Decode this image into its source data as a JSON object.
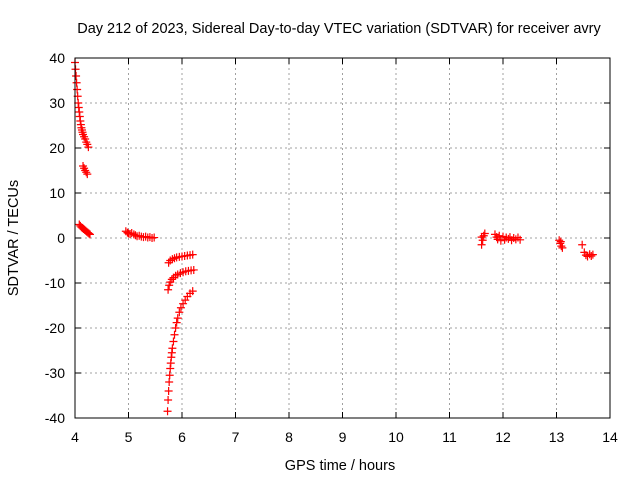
{
  "chart_data": {
    "type": "scatter",
    "title": "Day 212 of 2023, Sidereal Day-to-day VTEC variation (SDTVAR) for receiver avry",
    "xlabel": "GPS time / hours",
    "ylabel": "SDTVAR / TECUs",
    "xlim": [
      4,
      14
    ],
    "ylim": [
      -40,
      40
    ],
    "xticks": [
      "4",
      "5",
      "6",
      "7",
      "8",
      "9",
      "10",
      "11",
      "12",
      "13",
      "14"
    ],
    "yticks": [
      "40",
      "30",
      "20",
      "10",
      "0",
      "-10",
      "-20",
      "-30",
      "-40"
    ],
    "grid": true,
    "marker": "+",
    "marker_color": "#ff0000",
    "series": [
      {
        "name": "SDTVAR",
        "points": [
          [
            4.0,
            39.0
          ],
          [
            4.01,
            37.5
          ],
          [
            4.02,
            36.0
          ],
          [
            4.03,
            34.5
          ],
          [
            4.04,
            33.0
          ],
          [
            4.05,
            31.5
          ],
          [
            4.06,
            30.0
          ],
          [
            4.07,
            29.0
          ],
          [
            4.08,
            28.0
          ],
          [
            4.09,
            27.0
          ],
          [
            4.1,
            26.0
          ],
          [
            4.11,
            25.2
          ],
          [
            4.12,
            24.5
          ],
          [
            4.13,
            24.0
          ],
          [
            4.14,
            23.5
          ],
          [
            4.15,
            23.0
          ],
          [
            4.17,
            22.5
          ],
          [
            4.19,
            22.0
          ],
          [
            4.21,
            21.3
          ],
          [
            4.23,
            20.8
          ],
          [
            4.25,
            20.2
          ],
          [
            4.15,
            16.0
          ],
          [
            4.17,
            15.5
          ],
          [
            4.19,
            15.0
          ],
          [
            4.21,
            14.6
          ],
          [
            4.23,
            14.2
          ],
          [
            4.08,
            3.0
          ],
          [
            4.1,
            2.7
          ],
          [
            4.12,
            2.4
          ],
          [
            4.14,
            2.2
          ],
          [
            4.16,
            2.0
          ],
          [
            4.18,
            1.8
          ],
          [
            4.2,
            1.6
          ],
          [
            4.22,
            1.4
          ],
          [
            4.24,
            1.2
          ],
          [
            4.26,
            1.0
          ],
          [
            4.28,
            0.8
          ],
          [
            4.95,
            1.5
          ],
          [
            4.98,
            1.2
          ],
          [
            5.0,
            1.0
          ],
          [
            5.03,
            0.9
          ],
          [
            5.06,
            1.1
          ],
          [
            5.1,
            0.8
          ],
          [
            5.13,
            0.6
          ],
          [
            5.16,
            0.4
          ],
          [
            5.2,
            0.5
          ],
          [
            5.24,
            0.3
          ],
          [
            5.28,
            0.2
          ],
          [
            5.32,
            0.3
          ],
          [
            5.36,
            0.1
          ],
          [
            5.4,
            0.2
          ],
          [
            5.44,
            0.0
          ],
          [
            5.48,
            0.1
          ],
          [
            5.75,
            -5.5
          ],
          [
            5.78,
            -5.0
          ],
          [
            5.82,
            -4.7
          ],
          [
            5.86,
            -4.5
          ],
          [
            5.9,
            -4.3
          ],
          [
            5.95,
            -4.2
          ],
          [
            6.0,
            -4.1
          ],
          [
            6.05,
            -4.0
          ],
          [
            6.1,
            -3.9
          ],
          [
            6.15,
            -3.8
          ],
          [
            6.2,
            -3.7
          ],
          [
            5.74,
            -11.5
          ],
          [
            5.76,
            -10.5
          ],
          [
            5.78,
            -9.8
          ],
          [
            5.81,
            -9.2
          ],
          [
            5.84,
            -8.8
          ],
          [
            5.88,
            -8.4
          ],
          [
            5.92,
            -8.1
          ],
          [
            5.97,
            -7.8
          ],
          [
            6.02,
            -7.6
          ],
          [
            6.07,
            -7.4
          ],
          [
            6.12,
            -7.3
          ],
          [
            6.17,
            -7.2
          ],
          [
            6.22,
            -7.1
          ],
          [
            5.73,
            -38.5
          ],
          [
            5.74,
            -36.0
          ],
          [
            5.75,
            -34.0
          ],
          [
            5.76,
            -32.0
          ],
          [
            5.77,
            -30.5
          ],
          [
            5.78,
            -29.0
          ],
          [
            5.79,
            -27.8
          ],
          [
            5.8,
            -26.5
          ],
          [
            5.81,
            -25.5
          ],
          [
            5.82,
            -24.5
          ],
          [
            5.84,
            -23.0
          ],
          [
            5.86,
            -21.5
          ],
          [
            5.88,
            -20.0
          ],
          [
            5.9,
            -18.8
          ],
          [
            5.92,
            -17.8
          ],
          [
            5.95,
            -16.5
          ],
          [
            5.98,
            -15.5
          ],
          [
            6.02,
            -14.6
          ],
          [
            6.06,
            -13.8
          ],
          [
            6.1,
            -13.0
          ],
          [
            6.15,
            -12.3
          ],
          [
            6.2,
            -11.8
          ],
          [
            11.6,
            -1.5
          ],
          [
            11.62,
            -0.5
          ],
          [
            11.64,
            0.5
          ],
          [
            11.66,
            1.0
          ],
          [
            11.6,
            0.2
          ],
          [
            11.85,
            0.8
          ],
          [
            11.88,
            0.2
          ],
          [
            11.9,
            -0.3
          ],
          [
            11.93,
            0.5
          ],
          [
            11.96,
            -0.6
          ],
          [
            12.0,
            0.3
          ],
          [
            12.03,
            -0.4
          ],
          [
            12.06,
            0.1
          ],
          [
            12.1,
            -0.2
          ],
          [
            12.13,
            0.2
          ],
          [
            12.16,
            -0.5
          ],
          [
            12.2,
            0.0
          ],
          [
            12.24,
            -0.3
          ],
          [
            12.28,
            0.1
          ],
          [
            12.32,
            -0.4
          ],
          [
            13.05,
            -0.5
          ],
          [
            13.07,
            -1.2
          ],
          [
            13.09,
            -1.8
          ],
          [
            13.11,
            -2.2
          ],
          [
            13.08,
            -0.8
          ],
          [
            13.48,
            -1.5
          ],
          [
            13.52,
            -3.2
          ],
          [
            13.55,
            -3.8
          ],
          [
            13.58,
            -4.1
          ],
          [
            13.62,
            -3.6
          ],
          [
            13.65,
            -4.0
          ],
          [
            13.68,
            -3.7
          ]
        ]
      }
    ]
  }
}
